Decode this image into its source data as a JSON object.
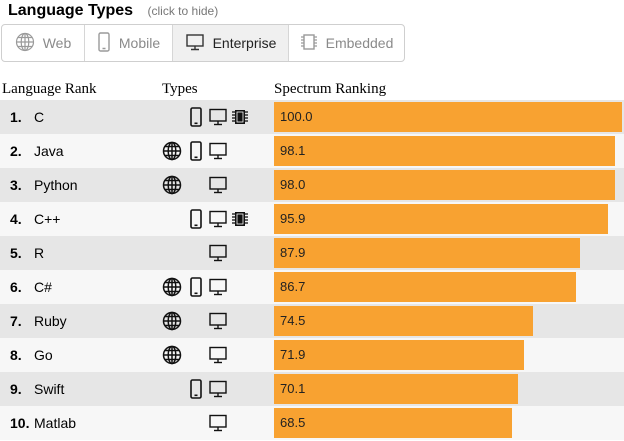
{
  "header": {
    "title": "Language Types",
    "hint": "(click to hide)"
  },
  "filters": [
    {
      "label": "Web",
      "icon": "globe-icon",
      "active": false
    },
    {
      "label": "Mobile",
      "icon": "phone-icon",
      "active": false
    },
    {
      "label": "Enterprise",
      "icon": "monitor-icon",
      "active": true
    },
    {
      "label": "Embedded",
      "icon": "chip-icon",
      "active": false
    }
  ],
  "columns": {
    "rank": "Language Rank",
    "types": "Types",
    "ranking": "Spectrum Ranking"
  },
  "colors": {
    "bar": "#f8a231",
    "row_odd": "#e6e6e6",
    "row_even": "#f7f7f7"
  },
  "chart_data": {
    "type": "bar",
    "orientation": "horizontal",
    "xlim": [
      0,
      100
    ],
    "categories": [
      "C",
      "Java",
      "Python",
      "C++",
      "R",
      "C#",
      "Ruby",
      "Go",
      "Swift",
      "Matlab"
    ],
    "ranks": [
      "1.",
      "2.",
      "3.",
      "4.",
      "5.",
      "6.",
      "7.",
      "8.",
      "9.",
      "10."
    ],
    "values": [
      100.0,
      98.1,
      98.0,
      95.9,
      87.9,
      86.7,
      74.5,
      71.9,
      70.1,
      68.5
    ],
    "value_labels": [
      "100.0",
      "98.1",
      "98.0",
      "95.9",
      "87.9",
      "86.7",
      "74.5",
      "71.9",
      "70.1",
      "68.5"
    ],
    "types": [
      [
        "mobile",
        "enterprise",
        "embedded"
      ],
      [
        "web",
        "mobile",
        "enterprise"
      ],
      [
        "web",
        "enterprise"
      ],
      [
        "mobile",
        "enterprise",
        "embedded"
      ],
      [
        "enterprise"
      ],
      [
        "web",
        "mobile",
        "enterprise"
      ],
      [
        "web",
        "enterprise"
      ],
      [
        "web",
        "enterprise"
      ],
      [
        "mobile",
        "enterprise"
      ],
      [
        "enterprise"
      ]
    ]
  }
}
